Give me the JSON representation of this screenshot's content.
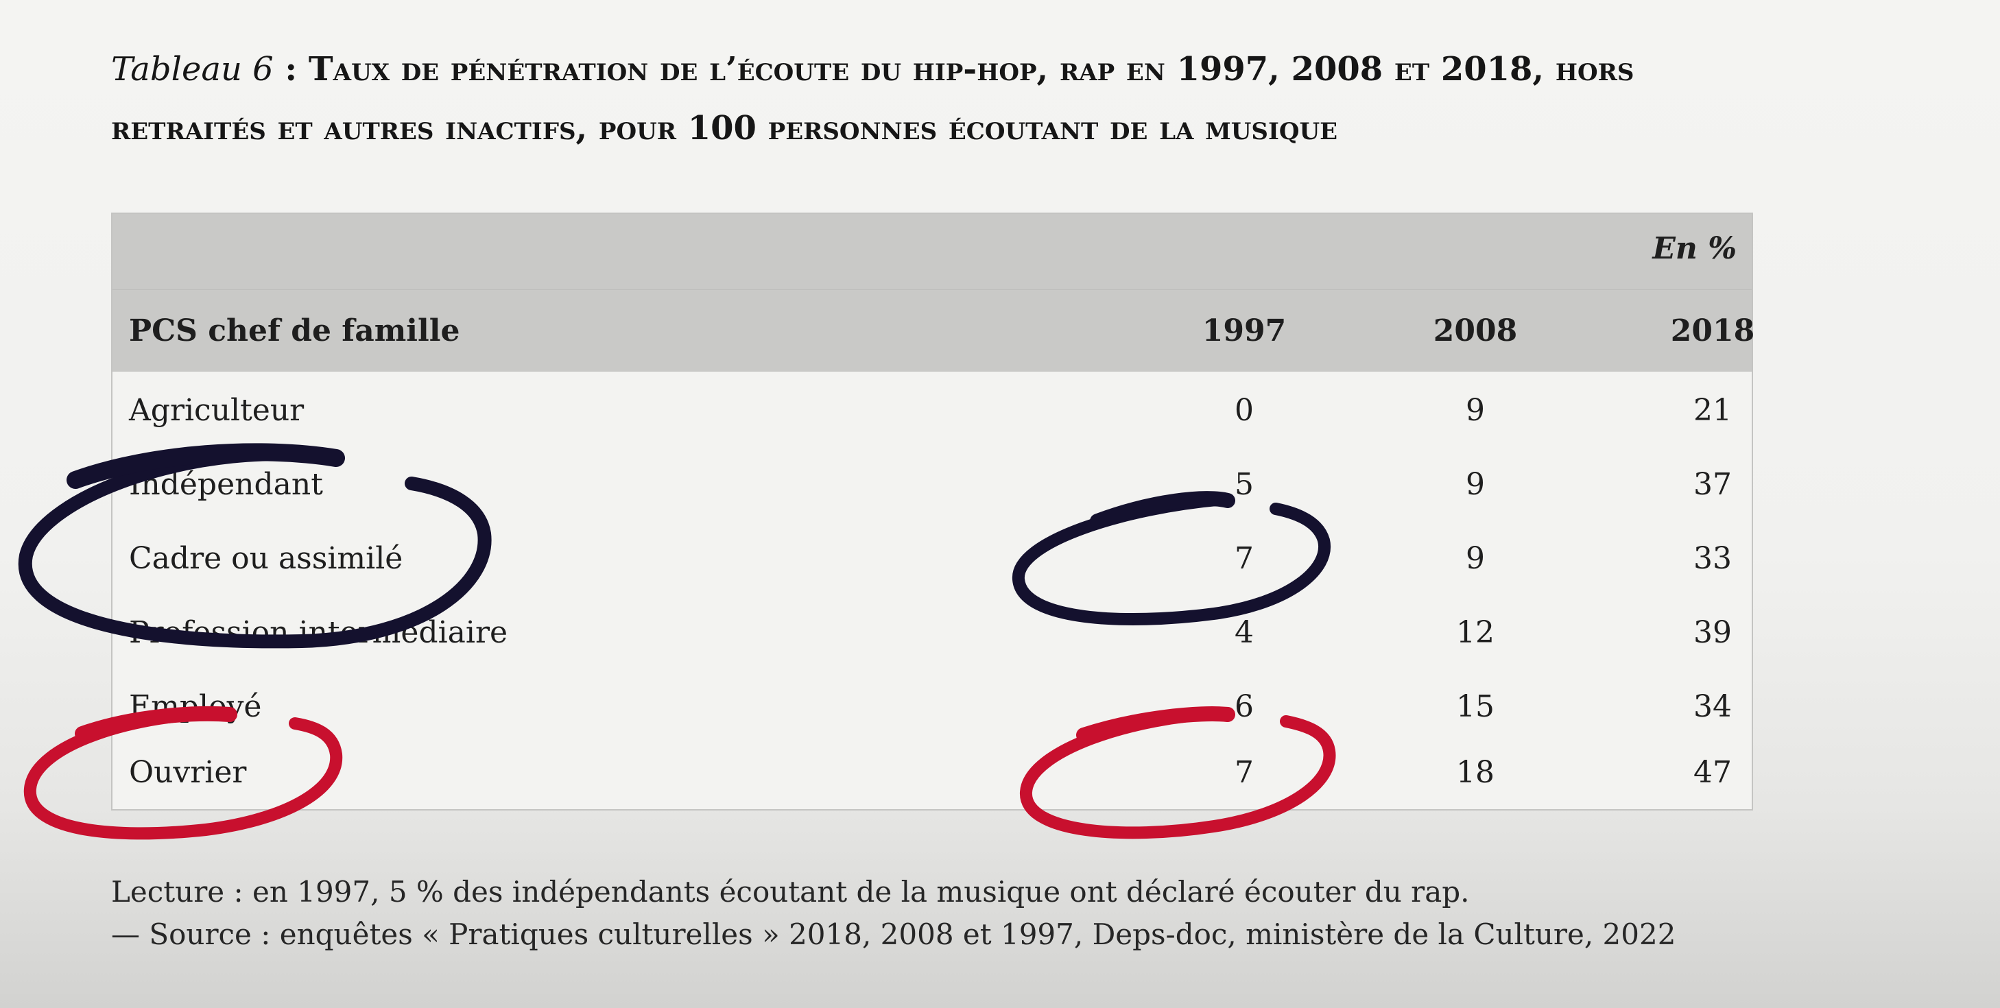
{
  "title": {
    "prefix": "Tableau 6",
    "separator": " : ",
    "text": "Taux de pénétration de l’écoute du hip-hop, rap en 1997, 2008 et 2018, hors retraités et autres inactifs, pour 100 personnes écoutant de la musique"
  },
  "table": {
    "unit": "En %",
    "headers": [
      "PCS chef de famille",
      "1997",
      "2008",
      "2018"
    ],
    "rows": [
      {
        "label": "Agriculteur",
        "v1997": "0",
        "v2008": "9",
        "v2018": "21"
      },
      {
        "label": "Indépendant",
        "v1997": "5",
        "v2008": "9",
        "v2018": "37"
      },
      {
        "label": "Cadre ou assimilé",
        "v1997": "7",
        "v2008": "9",
        "v2018": "33"
      },
      {
        "label": "Profession intermédiaire",
        "v1997": "4",
        "v2008": "12",
        "v2018": "39"
      },
      {
        "label": "Employé",
        "v1997": "6",
        "v2008": "15",
        "v2018": "34"
      },
      {
        "label": "Ouvrier",
        "v1997": "7",
        "v2008": "18",
        "v2018": "47"
      }
    ]
  },
  "footnote": {
    "reading": "Lecture : en 1997, 5 % des indépendants écoutant de la musique ont déclaré écouter du rap.",
    "source": "— Source : enquêtes « Pratiques culturelles » 2018, 2008 et 1997, Deps-doc, ministère de la Culture, 2022"
  },
  "annotations": {
    "dark_ink": "#14112e",
    "red_ink": "#c8102e"
  }
}
